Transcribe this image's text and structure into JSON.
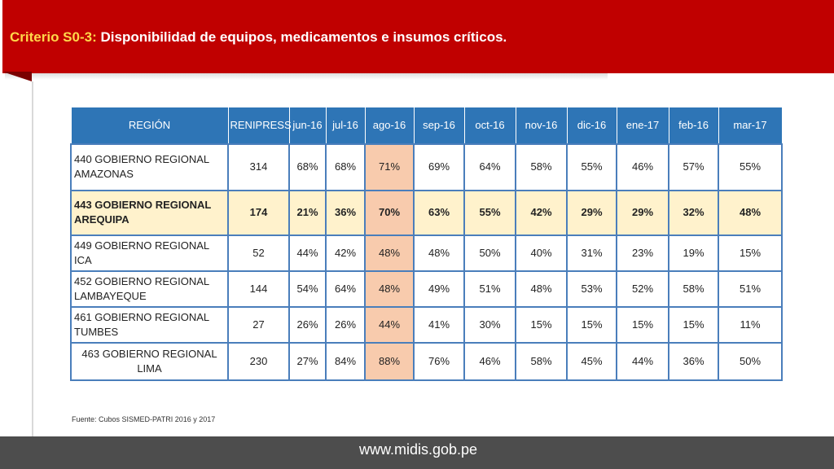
{
  "header": {
    "code": "Criterio S0-3:",
    "title": "Disponibilidad de equipos, medicamentos e insumos críticos."
  },
  "table": {
    "columns": [
      "REGIÓN",
      "RENIPRESS",
      "jun-16",
      "jul-16",
      "ago-16",
      "sep-16",
      "oct-16",
      "nov-16",
      "dic-16",
      "ene-17",
      "feb-16",
      "mar-17"
    ],
    "rows": [
      [
        "440 GOBIERNO REGIONAL AMAZONAS",
        "314",
        "68%",
        "68%",
        "71%",
        "69%",
        "64%",
        "58%",
        "55%",
        "46%",
        "57%",
        "55%"
      ],
      [
        "443 GOBIERNO REGIONAL AREQUIPA",
        "174",
        "21%",
        "36%",
        "70%",
        "63%",
        "55%",
        "42%",
        "29%",
        "29%",
        "32%",
        "48%"
      ],
      [
        "449 GOBIERNO REGIONAL ICA",
        "52",
        "44%",
        "42%",
        "48%",
        "48%",
        "50%",
        "40%",
        "31%",
        "23%",
        "19%",
        "15%"
      ],
      [
        "452 GOBIERNO REGIONAL LAMBAYEQUE",
        "144",
        "54%",
        "64%",
        "48%",
        "49%",
        "51%",
        "48%",
        "53%",
        "52%",
        "58%",
        "51%"
      ],
      [
        "461 GOBIERNO REGIONAL TUMBES",
        "27",
        "26%",
        "26%",
        "44%",
        "41%",
        "30%",
        "15%",
        "15%",
        "15%",
        "15%",
        "11%"
      ],
      [
        "463 GOBIERNO REGIONAL LIMA",
        "230",
        "27%",
        "84%",
        "88%",
        "76%",
        "46%",
        "58%",
        "45%",
        "44%",
        "36%",
        "50%"
      ]
    ]
  },
  "source": "Fuente: Cubos SISMED-PATRI 2016 y 2017",
  "footer": {
    "url": "www.midis.gob.pe"
  },
  "colors": {
    "header_red": "#c00000",
    "header_code": "#ffd84a",
    "table_header_blue": "#2e75b6",
    "table_border": "#4a7ebb",
    "highlight_row": "#fff2cc",
    "highlight_column": "#f8cbad",
    "footer_gray": "#4d4d4d"
  }
}
